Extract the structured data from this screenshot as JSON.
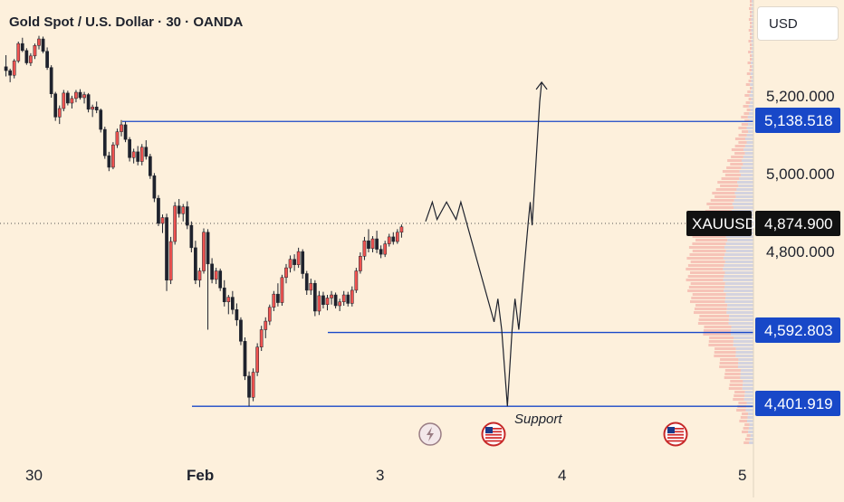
{
  "header": {
    "title": "Gold Spot / U.S. Dollar · 30 · OANDA",
    "currency": "USD"
  },
  "chart_data": {
    "type": "candlestick",
    "title": "Gold Spot / U.S. Dollar · 30 · OANDA",
    "symbol": "XAUUSD",
    "current_price": "4,874.900",
    "current_value": 4874.9,
    "y_ticks": [
      {
        "value": 5200,
        "label": "5,200.000"
      },
      {
        "value": 5000,
        "label": "5,000.000"
      },
      {
        "value": 4800,
        "label": "4,800.000"
      }
    ],
    "x_ticks": [
      {
        "label": "30",
        "bold": false
      },
      {
        "label": "Feb",
        "bold": true
      },
      {
        "label": "3",
        "bold": false
      },
      {
        "label": "4",
        "bold": false
      },
      {
        "label": "5",
        "bold": false
      }
    ],
    "levels": [
      {
        "value": 5138.518,
        "label": "5,138.518"
      },
      {
        "value": 4592.803,
        "label": "4,592.803"
      },
      {
        "value": 4401.919,
        "label": "4,401.919",
        "annotation": "Support"
      }
    ],
    "colors": {
      "up": "#26a69a",
      "down": "#ef5350",
      "candle": "#1e222d",
      "level": "#1848c8",
      "background": "#fdf0dc"
    },
    "candles": [
      [
        5280,
        5310,
        5255,
        5270
      ],
      [
        5270,
        5275,
        5240,
        5258
      ],
      [
        5258,
        5300,
        5250,
        5295
      ],
      [
        5295,
        5345,
        5290,
        5340
      ],
      [
        5340,
        5355,
        5318,
        5322
      ],
      [
        5322,
        5328,
        5285,
        5290
      ],
      [
        5290,
        5315,
        5282,
        5308
      ],
      [
        5308,
        5340,
        5300,
        5335
      ],
      [
        5335,
        5360,
        5325,
        5352
      ],
      [
        5352,
        5358,
        5315,
        5320
      ],
      [
        5320,
        5330,
        5272,
        5278
      ],
      [
        5278,
        5284,
        5200,
        5210
      ],
      [
        5210,
        5215,
        5140,
        5150
      ],
      [
        5150,
        5180,
        5132,
        5172
      ],
      [
        5172,
        5220,
        5165,
        5212
      ],
      [
        5212,
        5218,
        5180,
        5186
      ],
      [
        5186,
        5205,
        5172,
        5198
      ],
      [
        5198,
        5220,
        5188,
        5214
      ],
      [
        5214,
        5222,
        5195,
        5200
      ],
      [
        5200,
        5215,
        5185,
        5208
      ],
      [
        5208,
        5212,
        5162,
        5170
      ],
      [
        5170,
        5182,
        5150,
        5176
      ],
      [
        5176,
        5190,
        5160,
        5168
      ],
      [
        5168,
        5172,
        5110,
        5118
      ],
      [
        5118,
        5125,
        5042,
        5050
      ],
      [
        5050,
        5060,
        5010,
        5020
      ],
      [
        5020,
        5085,
        5015,
        5078
      ],
      [
        5078,
        5120,
        5070,
        5112
      ],
      [
        5112,
        5142,
        5100,
        5130
      ],
      [
        5130,
        5138,
        5085,
        5092
      ],
      [
        5092,
        5098,
        5035,
        5045
      ],
      [
        5045,
        5068,
        5030,
        5060
      ],
      [
        5060,
        5075,
        5025,
        5035
      ],
      [
        5035,
        5080,
        5025,
        5072
      ],
      [
        5072,
        5090,
        5040,
        5048
      ],
      [
        5048,
        5055,
        4990,
        4998
      ],
      [
        4998,
        5005,
        4930,
        4940
      ],
      [
        4940,
        4948,
        4868,
        4875
      ],
      [
        4875,
        4898,
        4850,
        4890
      ],
      [
        4890,
        4900,
        4700,
        4728
      ],
      [
        4728,
        4840,
        4718,
        4828
      ],
      [
        4828,
        4930,
        4820,
        4920
      ],
      [
        4920,
        4938,
        4890,
        4900
      ],
      [
        4900,
        4925,
        4880,
        4918
      ],
      [
        4918,
        4932,
        4860,
        4870
      ],
      [
        4870,
        4880,
        4800,
        4812
      ],
      [
        4812,
        4830,
        4718,
        4728
      ],
      [
        4728,
        4760,
        4710,
        4752
      ],
      [
        4752,
        4862,
        4745,
        4852
      ],
      [
        4852,
        4860,
        4600,
        4770
      ],
      [
        4770,
        4785,
        4720,
        4730
      ],
      [
        4730,
        4760,
        4718,
        4752
      ],
      [
        4752,
        4758,
        4700,
        4708
      ],
      [
        4708,
        4728,
        4660,
        4672
      ],
      [
        4672,
        4690,
        4640,
        4684
      ],
      [
        4684,
        4700,
        4640,
        4652
      ],
      [
        4652,
        4668,
        4610,
        4625
      ],
      [
        4625,
        4632,
        4560,
        4570
      ],
      [
        4570,
        4580,
        4470,
        4480
      ],
      [
        4480,
        4492,
        4402,
        4425
      ],
      [
        4425,
        4500,
        4415,
        4490
      ],
      [
        4490,
        4565,
        4480,
        4555
      ],
      [
        4555,
        4610,
        4545,
        4600
      ],
      [
        4600,
        4632,
        4578,
        4622
      ],
      [
        4622,
        4665,
        4612,
        4658
      ],
      [
        4658,
        4700,
        4648,
        4692
      ],
      [
        4692,
        4720,
        4660,
        4670
      ],
      [
        4670,
        4742,
        4662,
        4735
      ],
      [
        4735,
        4770,
        4720,
        4760
      ],
      [
        4760,
        4792,
        4748,
        4782
      ],
      [
        4782,
        4795,
        4752,
        4768
      ],
      [
        4768,
        4812,
        4760,
        4802
      ],
      [
        4802,
        4808,
        4732,
        4745
      ],
      [
        4745,
        4752,
        4690,
        4702
      ],
      [
        4702,
        4732,
        4690,
        4720
      ],
      [
        4720,
        4728,
        4635,
        4648
      ],
      [
        4648,
        4700,
        4638,
        4688
      ],
      [
        4688,
        4698,
        4655,
        4665
      ],
      [
        4665,
        4690,
        4650,
        4682
      ],
      [
        4682,
        4700,
        4665,
        4690
      ],
      [
        4690,
        4696,
        4655,
        4662
      ],
      [
        4662,
        4680,
        4648,
        4672
      ],
      [
        4672,
        4700,
        4662,
        4690
      ],
      [
        4690,
        4698,
        4660,
        4668
      ],
      [
        4668,
        4712,
        4660,
        4702
      ],
      [
        4702,
        4760,
        4695,
        4752
      ],
      [
        4752,
        4800,
        4745,
        4790
      ],
      [
        4790,
        4840,
        4780,
        4830
      ],
      [
        4830,
        4860,
        4800,
        4810
      ],
      [
        4810,
        4842,
        4800,
        4835
      ],
      [
        4835,
        4856,
        4798,
        4808
      ],
      [
        4808,
        4818,
        4785,
        4795
      ],
      [
        4795,
        4830,
        4788,
        4822
      ],
      [
        4822,
        4848,
        4815,
        4840
      ],
      [
        4840,
        4852,
        4820,
        4828
      ],
      [
        4828,
        4860,
        4822,
        4852
      ],
      [
        4852,
        4872,
        4838,
        4866
      ]
    ],
    "projection": [
      [
        4838,
        4880
      ],
      [
        4845,
        4930
      ],
      [
        4850,
        4885
      ],
      [
        4860,
        4930
      ],
      [
        4870,
        4885
      ],
      [
        4875,
        4930
      ],
      [
        4910,
        4620
      ],
      [
        4914,
        4680
      ],
      [
        4918,
        4600
      ],
      [
        4924,
        4402
      ],
      [
        4929,
        4600
      ],
      [
        4932,
        4680
      ],
      [
        4936,
        4600
      ],
      [
        4946,
        4880
      ],
      [
        4948,
        4930
      ],
      [
        4950,
        4870
      ],
      [
        4958,
        5190
      ],
      [
        4960,
        5240
      ]
    ],
    "x_domain": [
      4700,
      5055
    ],
    "events": [
      {
        "type": "lightning"
      },
      {
        "type": "flag-us"
      },
      {
        "type": "flag-us"
      }
    ]
  }
}
